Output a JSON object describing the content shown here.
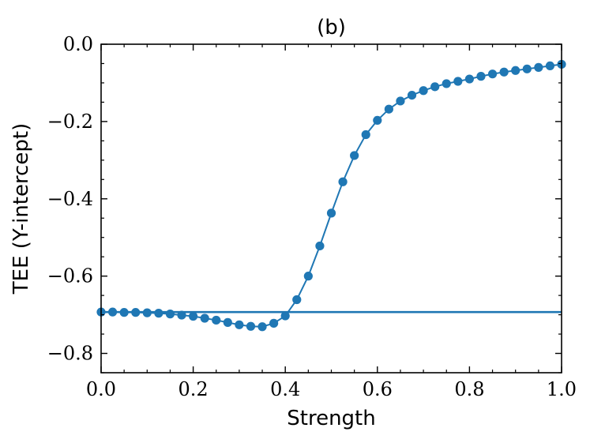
{
  "chart_data": {
    "type": "line",
    "title": "(b)",
    "xlabel": "Strength",
    "ylabel": "TEE (Y-intercept)",
    "xlim": [
      0.0,
      1.0
    ],
    "ylim": [
      -0.85,
      0.0
    ],
    "x_ticks": [
      0.0,
      0.2,
      0.4,
      0.6,
      0.8,
      1.0
    ],
    "x_tick_labels": [
      "0.0",
      "0.2",
      "0.4",
      "0.6",
      "0.8",
      "1.0"
    ],
    "y_ticks": [
      0.0,
      -0.2,
      -0.4,
      -0.6,
      -0.8
    ],
    "y_tick_labels": [
      "0.0",
      "−0.2",
      "−0.4",
      "−0.6",
      "−0.8"
    ],
    "grid": false,
    "color": "#1f77b4",
    "series": [
      {
        "name": "TEE",
        "marker": "circle",
        "x": [
          0.0,
          0.025,
          0.05,
          0.075,
          0.1,
          0.125,
          0.15,
          0.175,
          0.2,
          0.225,
          0.25,
          0.275,
          0.3,
          0.325,
          0.35,
          0.375,
          0.4,
          0.425,
          0.45,
          0.475,
          0.5,
          0.525,
          0.55,
          0.575,
          0.6,
          0.625,
          0.65,
          0.675,
          0.7,
          0.725,
          0.75,
          0.775,
          0.8,
          0.825,
          0.85,
          0.875,
          0.9,
          0.925,
          0.95,
          0.975,
          1.0
        ],
        "values": [
          -0.693,
          -0.693,
          -0.694,
          -0.694,
          -0.695,
          -0.696,
          -0.698,
          -0.701,
          -0.704,
          -0.709,
          -0.714,
          -0.72,
          -0.726,
          -0.73,
          -0.731,
          -0.722,
          -0.703,
          -0.661,
          -0.6,
          -0.522,
          -0.437,
          -0.356,
          -0.288,
          -0.234,
          -0.197,
          -0.168,
          -0.147,
          -0.132,
          -0.12,
          -0.11,
          -0.102,
          -0.096,
          -0.09,
          -0.083,
          -0.077,
          -0.072,
          -0.068,
          -0.064,
          -0.06,
          -0.056,
          -0.052
        ]
      },
      {
        "name": "reference",
        "marker": "none",
        "x": [
          0.0,
          1.0
        ],
        "values": [
          -0.693,
          -0.693
        ]
      }
    ]
  }
}
